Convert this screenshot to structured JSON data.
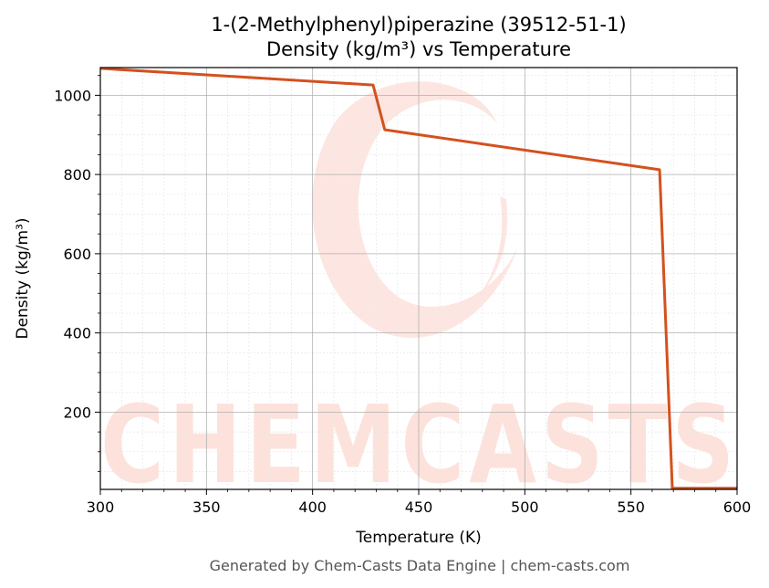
{
  "title_line1": "1-(2-Methylphenyl)piperazine (39512-51-1)",
  "title_line2": "Density (kg/m³) vs Temperature",
  "footer": "Generated by Chem-Casts Data Engine | chem-casts.com",
  "watermark": "CHEMCASTS",
  "colors": {
    "line": "#d4511e",
    "watermark": "#fde2dc",
    "grid_major": "#b0b0b0",
    "grid_minor": "#e6e6e6"
  },
  "chart_data": {
    "type": "line",
    "title": "1-(2-Methylphenyl)piperazine (39512-51-1)\nDensity (kg/m³) vs Temperature",
    "xlabel": "Temperature (K)",
    "ylabel": "Density (kg/m³)",
    "xlim": [
      300,
      600
    ],
    "ylim": [
      5,
      1070
    ],
    "xticks": [
      300,
      350,
      400,
      450,
      500,
      550,
      600
    ],
    "yticks": [
      200,
      400,
      600,
      800,
      1000
    ],
    "grid": true,
    "series": [
      {
        "x": [
          300,
          428.5,
          434,
          563.5,
          569.5,
          600
        ],
        "y": [
          1068,
          1026,
          913,
          812,
          8,
          8
        ]
      }
    ]
  }
}
